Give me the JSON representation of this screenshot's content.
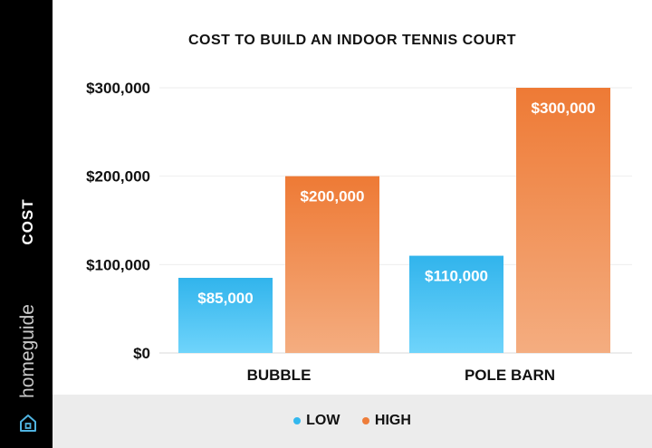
{
  "chart_data": {
    "type": "bar",
    "title": "COST TO BUILD AN INDOOR TENNIS COURT",
    "ylabel": "COST",
    "xlabel": "",
    "categories": [
      "BUBBLE",
      "POLE BARN"
    ],
    "series": [
      {
        "name": "LOW",
        "values": [
          85000,
          110000
        ],
        "labels": [
          "$85,000",
          "$110,000"
        ],
        "color": "#33b8ee"
      },
      {
        "name": "HIGH",
        "values": [
          200000,
          300000
        ],
        "labels": [
          "$200,000",
          "$300,000"
        ],
        "color": "#ee7d3a"
      }
    ],
    "yticks": [
      0,
      100000,
      200000,
      300000
    ],
    "ytick_labels": [
      "$0",
      "$100,000",
      "$200,000",
      "$300,000"
    ],
    "ylim": [
      0,
      300000
    ],
    "grid": true,
    "legend_position": "bottom"
  },
  "brand": {
    "name": "homeguide",
    "icon": "house-icon"
  }
}
